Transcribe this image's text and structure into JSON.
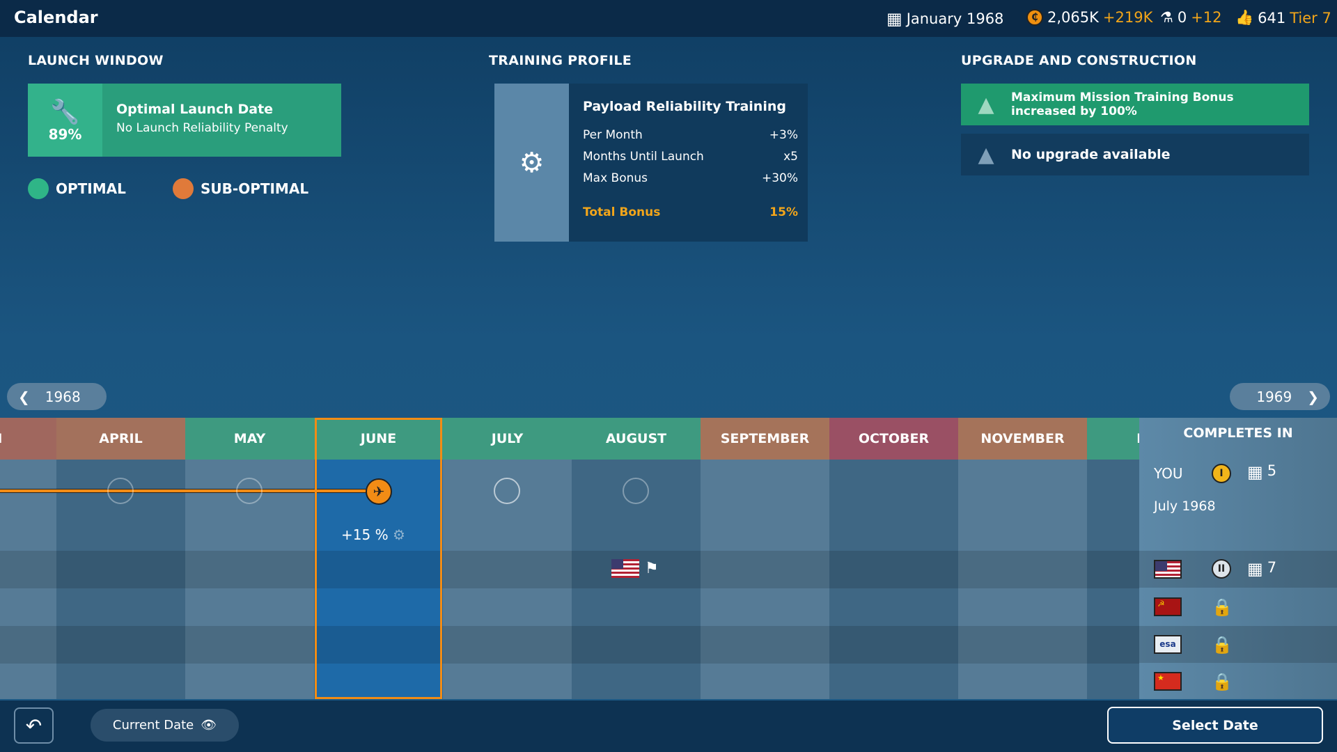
{
  "header": {
    "title": "Calendar",
    "date": "January 1968",
    "money": "2,065K",
    "money_delta": "+219K",
    "science": "0",
    "science_delta": "+12",
    "reputation": "641",
    "tier": "Tier 7"
  },
  "launch_window": {
    "title": "LAUNCH WINDOW",
    "percent": "89%",
    "card_title": "Optimal Launch Date",
    "card_sub": "No Launch Reliability Penalty",
    "legend_optimal": "OPTIMAL",
    "legend_suboptimal": "SUB-OPTIMAL",
    "colors": {
      "optimal": "#2fb587",
      "suboptimal": "#e07a3a"
    }
  },
  "training": {
    "title": "TRAINING PROFILE",
    "card_title": "Payload Reliability Training",
    "rows": [
      {
        "label": "Per Month",
        "value": "+3%"
      },
      {
        "label": "Months Until Launch",
        "value": "x5"
      },
      {
        "label": "Max Bonus",
        "value": "+30%"
      }
    ],
    "total_label": "Total Bonus",
    "total_value": "15%"
  },
  "upgrade": {
    "title": "UPGRADE AND CONSTRUCTION",
    "items": [
      "Maximum Mission Training Bonus increased by 100%",
      "No upgrade available"
    ]
  },
  "nav": {
    "prev_year": "1968",
    "next_year": "1969"
  },
  "months": [
    {
      "label": "CH",
      "color": "#a0675e"
    },
    {
      "label": "APRIL",
      "color": "#a3715c"
    },
    {
      "label": "MAY",
      "color": "#3e9a80"
    },
    {
      "label": "JUNE",
      "color": "#3e9a80"
    },
    {
      "label": "JULY",
      "color": "#3e9a80"
    },
    {
      "label": "AUGUST",
      "color": "#3e9a80"
    },
    {
      "label": "SEPTEMBER",
      "color": "#a5735a"
    },
    {
      "label": "OCTOBER",
      "color": "#9a5064"
    },
    {
      "label": "NOVEMBER",
      "color": "#a5735a"
    },
    {
      "label": "DEC",
      "color": "#3e9a80"
    }
  ],
  "selected_month": "JUNE",
  "bonus_label": "+15 %",
  "completes": {
    "title": "COMPLETES IN",
    "you_label": "YOU",
    "you_tier": "I",
    "you_months": "5",
    "you_date": "July 1968",
    "rivals": [
      {
        "flag": "usa",
        "tier": "II",
        "months": "7"
      },
      {
        "flag": "ussr",
        "locked": true
      },
      {
        "flag": "esa",
        "locked": true
      },
      {
        "flag": "china",
        "locked": true
      }
    ],
    "esa_text": "esa"
  },
  "footer": {
    "current_date": "Current Date",
    "select_date": "Select Date"
  }
}
